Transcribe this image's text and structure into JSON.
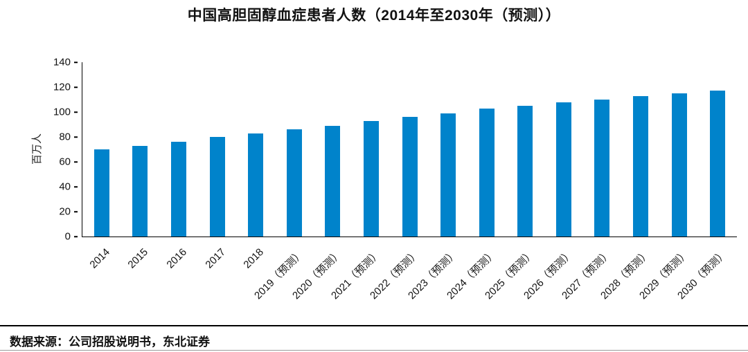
{
  "chart_data": {
    "type": "bar",
    "title": "中国高胆固醇血症患者人数（2014年至2030年（预测））",
    "xlabel": "",
    "ylabel": "百万人",
    "categories": [
      "2014",
      "2015",
      "2016",
      "2017",
      "2018",
      "2019（预测）",
      "2020（预测）",
      "2021（预测）",
      "2022（预测）",
      "2023（预测）",
      "2024（预测）",
      "2025（预测）",
      "2026（预测）",
      "2027（预测）",
      "2028（预测）",
      "2029（预测）",
      "2030（预测）"
    ],
    "values": [
      70,
      73,
      76,
      80,
      83,
      86,
      89,
      93,
      96,
      99,
      103,
      105,
      108,
      110,
      113,
      115,
      117
    ],
    "ylim": [
      0,
      140
    ],
    "yticks": [
      0,
      20,
      40,
      60,
      80,
      100,
      120,
      140
    ],
    "grid": false,
    "legend": "none",
    "bar_color": "#0083CB"
  },
  "source": "数据来源：公司招股说明书，东北证券"
}
